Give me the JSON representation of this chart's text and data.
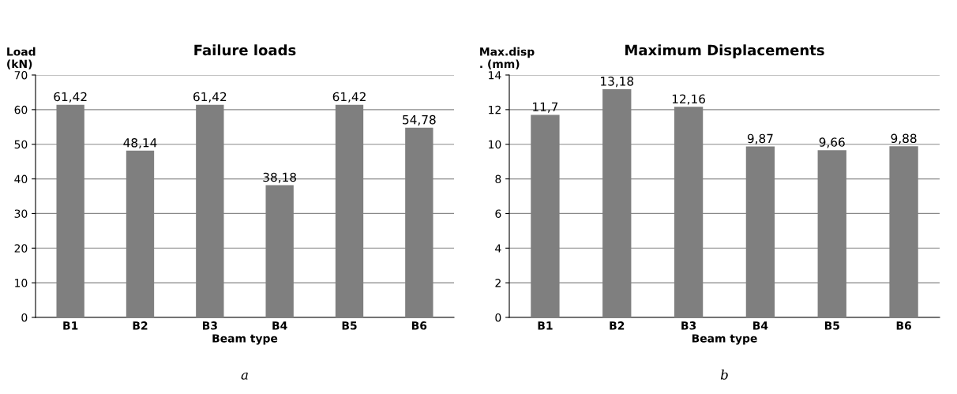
{
  "chart_data": [
    {
      "type": "bar",
      "title": "Failure loads",
      "xlabel": "Beam type",
      "ylabel": "Load\n(kN)",
      "categories": [
        "B1",
        "B2",
        "B3",
        "B4",
        "B5",
        "B6"
      ],
      "values": [
        61.42,
        48.14,
        61.42,
        38.18,
        61.42,
        54.78
      ],
      "value_labels": [
        "61,42",
        "48,14",
        "61,42",
        "38,18",
        "61,42",
        "54,78"
      ],
      "color": "#7f7f7f",
      "ylim": [
        0,
        70
      ],
      "yticks": [
        0,
        10,
        20,
        30,
        40,
        50,
        60,
        70
      ],
      "grid": "y",
      "annotations": [
        "a"
      ]
    },
    {
      "type": "bar",
      "title": "Maximum Displacements",
      "xlabel": "Beam type",
      "ylabel": "Max.disp\n. (mm)",
      "categories": [
        "B1",
        "B2",
        "B3",
        "B4",
        "B5",
        "B6"
      ],
      "values": [
        11.7,
        13.18,
        12.16,
        9.87,
        9.66,
        9.88
      ],
      "value_labels": [
        "11,7",
        "13,18",
        "12,16",
        "9,87",
        "9,66",
        "9,88"
      ],
      "color": "#7f7f7f",
      "ylim": [
        0,
        14
      ],
      "yticks": [
        0,
        2,
        4,
        6,
        8,
        10,
        12,
        14
      ],
      "grid": "y",
      "annotations": [
        "b"
      ]
    }
  ]
}
